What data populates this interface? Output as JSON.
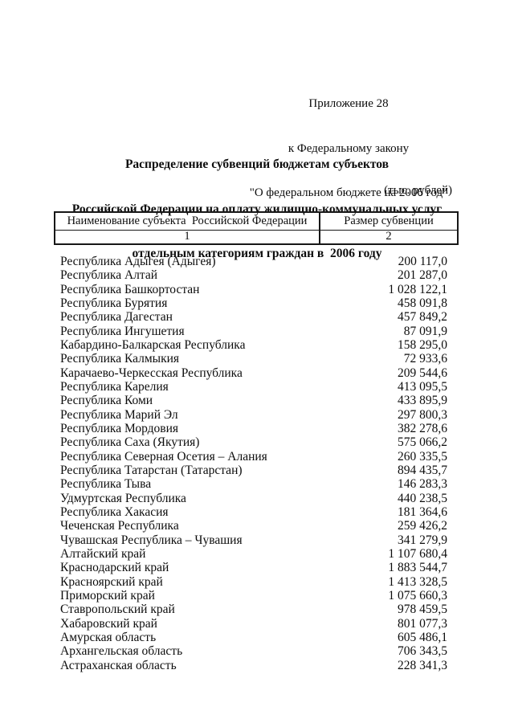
{
  "header": {
    "appendix_label": "Приложение 28",
    "law_reference_line1": "к Федеральному закону",
    "law_reference_line2": "\"О федеральном бюджете на 2006 год\""
  },
  "title": {
    "line1": "Распределение субвенций бюджетам субъектов",
    "line2": "Российской Федерации на оплату жилищно-коммунальных услуг",
    "line3": "отдельным категориям граждан в  2006 году"
  },
  "units_note": "(тыс. рублей)",
  "table": {
    "columns": [
      {
        "header": "Наименование субъекта  Российской Федерации",
        "number": "1"
      },
      {
        "header": "Размер субвенции",
        "number": "2"
      }
    ],
    "rows": [
      {
        "name": "Республика Адыгея (Адыгея)",
        "value": "200 117,0"
      },
      {
        "name": "Республика Алтай",
        "value": "201 287,0"
      },
      {
        "name": "Республика Башкортостан",
        "value": "1 028 122,1"
      },
      {
        "name": "Республика Бурятия",
        "value": "458 091,8"
      },
      {
        "name": "Республика Дагестан",
        "value": "457 849,2"
      },
      {
        "name": "Республика Ингушетия",
        "value": "87 091,9"
      },
      {
        "name": "Кабардино-Балкарская Республика",
        "value": "158 295,0"
      },
      {
        "name": "Республика Калмыкия",
        "value": "72 933,6"
      },
      {
        "name": "Карачаево-Черкесская Республика",
        "value": "209 544,6"
      },
      {
        "name": "Республика Карелия",
        "value": "413 095,5"
      },
      {
        "name": "Республика Коми",
        "value": "433 895,9"
      },
      {
        "name": "Республика Марий Эл",
        "value": "297 800,3"
      },
      {
        "name": "Республика Мордовия",
        "value": "382 278,6"
      },
      {
        "name": "Республика Саха (Якутия)",
        "value": "575 066,2"
      },
      {
        "name": "Республика Северная Осетия – Алания",
        "value": "260 335,5"
      },
      {
        "name": "Республика Татарстан (Татарстан)",
        "value": "894 435,7"
      },
      {
        "name": "Республика Тыва",
        "value": "146 283,3"
      },
      {
        "name": "Удмуртская Республика",
        "value": "440 238,5"
      },
      {
        "name": "Республика Хакасия",
        "value": "181 364,6"
      },
      {
        "name": "Чеченская Республика",
        "value": "259 426,2"
      },
      {
        "name": "Чувашская Республика – Чувашия",
        "value": "341 279,9"
      },
      {
        "name": "Алтайский край",
        "value": "1 107 680,4"
      },
      {
        "name": "Краснодарский край",
        "value": "1 883 544,7"
      },
      {
        "name": "Красноярский край",
        "value": "1 413 328,5"
      },
      {
        "name": "Приморский край",
        "value": "1 075 660,3"
      },
      {
        "name": "Ставропольский край",
        "value": "978 459,5"
      },
      {
        "name": "Хабаровский край",
        "value": "801 077,3"
      },
      {
        "name": "Амурская область",
        "value": "605 486,1"
      },
      {
        "name": "Архангельская область",
        "value": "706 343,5"
      },
      {
        "name": "Астраханская область",
        "value": "228 341,3"
      }
    ]
  }
}
